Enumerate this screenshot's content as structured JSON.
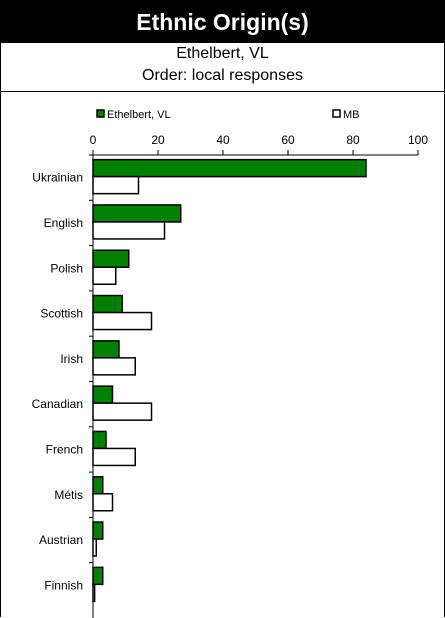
{
  "header": {
    "title": "Ethnic Origin(s)",
    "subtitle": "Ethelbert, VL",
    "order_note": "Order: local responses"
  },
  "chart_data": {
    "type": "bar",
    "orientation": "horizontal",
    "categories": [
      "Ukrainian",
      "English",
      "Polish",
      "Scottish",
      "Irish",
      "Canadian",
      "French",
      "Métis",
      "Austrian",
      "Finnish"
    ],
    "series": [
      {
        "name": "Ethelbert, VL",
        "color": "#008000",
        "values": [
          84,
          27,
          11,
          9,
          8,
          6,
          4,
          3,
          3,
          3
        ]
      },
      {
        "name": "MB",
        "color": "#ffffff",
        "values": [
          14,
          22,
          7,
          18,
          13,
          18,
          13,
          6,
          1,
          0.5
        ]
      }
    ],
    "xlim": [
      0,
      100
    ],
    "xticks": [
      "0",
      "20",
      "40",
      "60",
      "80",
      "100"
    ],
    "legend_position": "top"
  }
}
